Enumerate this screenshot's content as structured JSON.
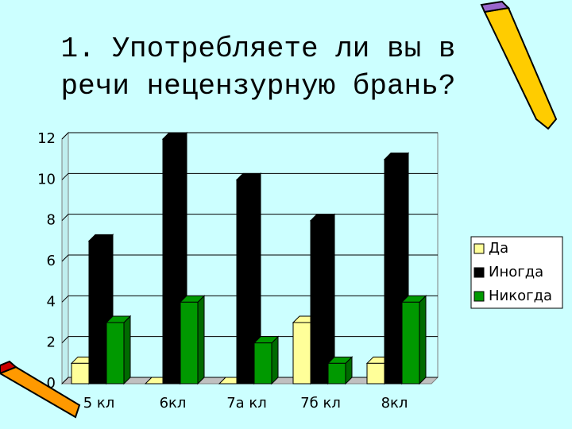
{
  "chart_data": {
    "type": "bar3d",
    "title": "1. Употребляете ли вы в речи нецензурную брань?",
    "categories": [
      "5 кл",
      "6кл",
      "7а кл",
      "7б кл",
      "8кл"
    ],
    "series": [
      {
        "name": "Да",
        "color": "#ffff99",
        "values": [
          1,
          0,
          0,
          3,
          1
        ]
      },
      {
        "name": "Иногда",
        "color": "#000000",
        "values": [
          7,
          12,
          10,
          8,
          11
        ]
      },
      {
        "name": "Никогда",
        "color": "#009900",
        "values": [
          3,
          4,
          2,
          1,
          4
        ]
      }
    ],
    "ylim": [
      0,
      12
    ],
    "yticks": [
      0,
      2,
      4,
      6,
      8,
      10,
      12
    ],
    "grid": true,
    "legend": "right"
  }
}
